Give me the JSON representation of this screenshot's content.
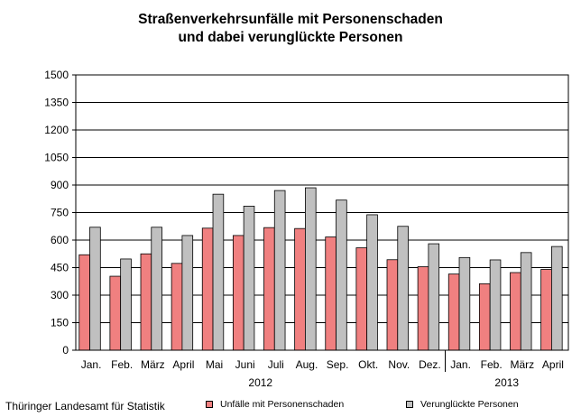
{
  "chart_data": {
    "type": "bar",
    "title": "Straßenverkehrsunfälle mit Personenschaden",
    "subtitle": "und dabei verunglückte Personen",
    "categories": [
      "Jan.",
      "Feb.",
      "März",
      "April",
      "Mai",
      "Juni",
      "Juli",
      "Aug.",
      "Sep.",
      "Okt.",
      "Nov.",
      "Dez.",
      "Jan.",
      "Feb.",
      "März",
      "April"
    ],
    "year_groups": [
      {
        "label": "2012",
        "start": 0,
        "end": 11
      },
      {
        "label": "2013",
        "start": 12,
        "end": 15
      }
    ],
    "series": [
      {
        "name": "Unfälle mit Personenschaden",
        "color": "#f08080",
        "values": [
          520,
          403,
          525,
          473,
          665,
          625,
          668,
          663,
          617,
          558,
          493,
          455,
          415,
          362,
          423,
          440
        ]
      },
      {
        "name": "Verunglückte Personen",
        "color": "#c0c0c0",
        "values": [
          670,
          497,
          670,
          625,
          850,
          785,
          870,
          885,
          818,
          738,
          675,
          580,
          505,
          492,
          532,
          565
        ]
      }
    ],
    "yticks": [
      0,
      150,
      300,
      450,
      600,
      750,
      900,
      1050,
      1200,
      1350,
      1500
    ],
    "ylim": [
      0,
      1500
    ],
    "grid": true,
    "legend": "bottom"
  },
  "source": "Thüringer Landesamt für Statistik"
}
